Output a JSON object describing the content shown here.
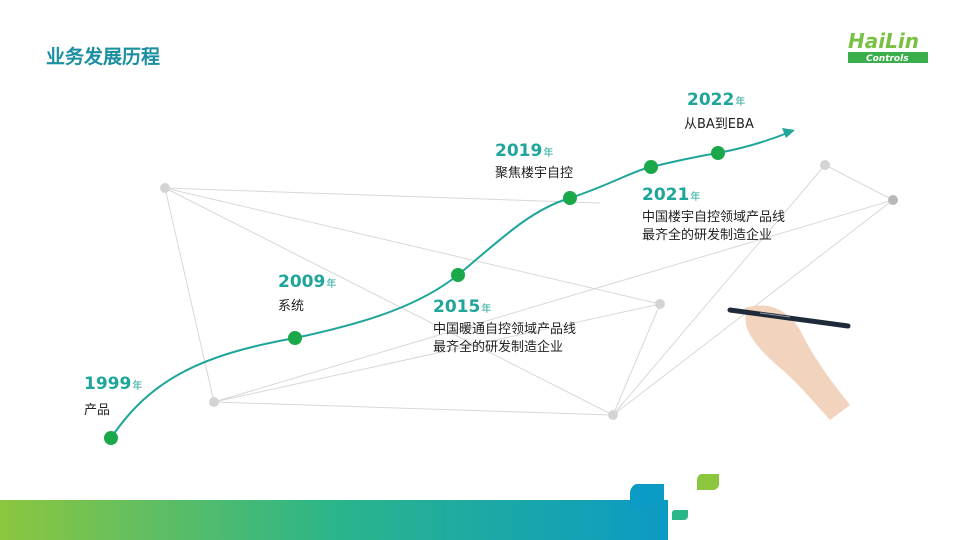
{
  "page": {
    "title": "业务发展历程"
  },
  "logo": {
    "text_top": "HaiLin",
    "text_bottom": "Controls"
  },
  "colors": {
    "accent": "#1fa59a",
    "dot": "#1aa84a",
    "title": "#1a8fa0",
    "band_start": "#8cc63f",
    "band_end": "#0b9bc4"
  },
  "milestones": [
    {
      "year": "1999",
      "unit": "年",
      "lines": [
        "产品"
      ]
    },
    {
      "year": "2009",
      "unit": "年",
      "lines": [
        "系统"
      ]
    },
    {
      "year": "2015",
      "unit": "年",
      "lines": [
        "中国暖通自控领域产品线",
        "最齐全的研发制造企业"
      ]
    },
    {
      "year": "2019",
      "unit": "年",
      "lines": [
        "聚焦楼宇自控"
      ]
    },
    {
      "year": "2021",
      "unit": "年",
      "lines": [
        "中国楼宇自控领域产品线",
        "最齐全的研发制造企业"
      ]
    },
    {
      "year": "2022",
      "unit": "年",
      "lines": [
        "从BA到EBA"
      ]
    }
  ]
}
